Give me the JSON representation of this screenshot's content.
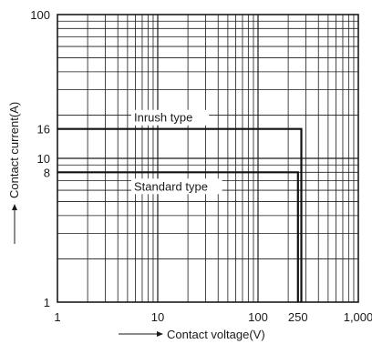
{
  "chart_data": {
    "type": "line",
    "xscale": "log",
    "yscale": "log",
    "xlim": [
      1,
      1000
    ],
    "ylim": [
      1,
      100
    ],
    "grid": true,
    "xlabel": "Contact voltage(V)",
    "ylabel": "Contact current(A)",
    "x_ticks": [
      {
        "value": 1,
        "label": "1"
      },
      {
        "value": 10,
        "label": "10"
      },
      {
        "value": 100,
        "label": "100"
      },
      {
        "value": 250,
        "label": "250"
      },
      {
        "value": 1000,
        "label": "1,000"
      }
    ],
    "y_ticks": [
      {
        "value": 1,
        "label": "1"
      },
      {
        "value": 8,
        "label": "8"
      },
      {
        "value": 10,
        "label": "10"
      },
      {
        "value": 16,
        "label": "16"
      },
      {
        "value": 100,
        "label": "100"
      }
    ],
    "series": [
      {
        "name": "Inrush type",
        "x": [
          1,
          270,
          270
        ],
        "y": [
          16,
          16,
          1
        ]
      },
      {
        "name": "Standard type",
        "x": [
          1,
          250,
          250
        ],
        "y": [
          8,
          8,
          1
        ]
      }
    ]
  }
}
